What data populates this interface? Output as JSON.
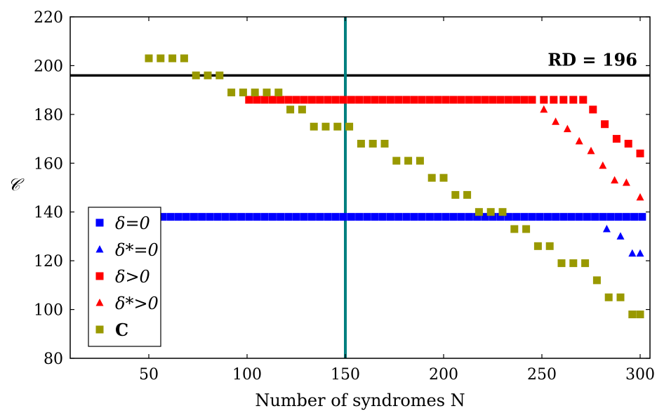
{
  "chart_data": {
    "type": "scatter",
    "title": "",
    "xlabel": "Number of syndromes N",
    "ylabel": "𝒞",
    "xlim": [
      10,
      305
    ],
    "ylim": [
      80,
      220
    ],
    "xticks": [
      50,
      100,
      150,
      200,
      250,
      300
    ],
    "yticks": [
      80,
      100,
      120,
      140,
      160,
      180,
      200,
      220
    ],
    "grid": false,
    "legend_position": "bottom-left",
    "reference_line": {
      "label": "RD =  196",
      "y": 196,
      "color": "#000000"
    },
    "vertical_line": {
      "x": 150,
      "color": "#008080"
    },
    "series": [
      {
        "name": "δ=0",
        "marker": "square",
        "color": "#0000ff",
        "x": [
          53,
          57,
          61,
          65,
          69,
          73,
          77,
          81,
          85,
          89,
          93,
          97,
          101,
          105,
          109,
          113,
          117,
          121,
          125,
          129,
          133,
          137,
          141,
          145,
          149,
          153,
          157,
          161,
          165,
          169,
          173,
          177,
          181,
          185,
          189,
          193,
          197,
          201,
          205,
          209,
          213,
          217,
          221,
          225,
          229,
          233,
          237,
          241,
          245,
          249,
          253,
          257,
          261,
          265,
          269,
          273,
          277,
          281,
          285,
          289,
          293,
          297,
          301
        ],
        "y": [
          138,
          138,
          138,
          138,
          138,
          138,
          138,
          138,
          138,
          138,
          138,
          138,
          138,
          138,
          138,
          138,
          138,
          138,
          138,
          138,
          138,
          138,
          138,
          138,
          138,
          138,
          138,
          138,
          138,
          138,
          138,
          138,
          138,
          138,
          138,
          138,
          138,
          138,
          138,
          138,
          138,
          138,
          138,
          138,
          138,
          138,
          138,
          138,
          138,
          138,
          138,
          138,
          138,
          138,
          138,
          138,
          138,
          138,
          138,
          138,
          138,
          138,
          138
        ]
      },
      {
        "name": "δ*=0",
        "marker": "triangle",
        "color": "#0000ff",
        "x": [
          283,
          290,
          296,
          300
        ],
        "y": [
          133,
          130,
          123,
          123
        ]
      },
      {
        "name": "δ>0",
        "marker": "square",
        "color": "#ff0000",
        "x": [
          101,
          105,
          109,
          113,
          117,
          121,
          125,
          129,
          133,
          137,
          141,
          145,
          149,
          153,
          157,
          161,
          165,
          169,
          173,
          177,
          181,
          185,
          189,
          193,
          197,
          201,
          205,
          209,
          213,
          217,
          221,
          225,
          229,
          233,
          237,
          241,
          245,
          251,
          256,
          261,
          266,
          271,
          276,
          282,
          288,
          294,
          300
        ],
        "y": [
          186,
          186,
          186,
          186,
          186,
          186,
          186,
          186,
          186,
          186,
          186,
          186,
          186,
          186,
          186,
          186,
          186,
          186,
          186,
          186,
          186,
          186,
          186,
          186,
          186,
          186,
          186,
          186,
          186,
          186,
          186,
          186,
          186,
          186,
          186,
          186,
          186,
          186,
          186,
          186,
          186,
          186,
          182,
          176,
          170,
          168,
          164
        ]
      },
      {
        "name": "δ*>0",
        "marker": "triangle",
        "color": "#ff0000",
        "x": [
          251,
          257,
          263,
          269,
          275,
          281,
          287,
          293,
          300
        ],
        "y": [
          182,
          177,
          174,
          169,
          165,
          159,
          153,
          152,
          146
        ]
      },
      {
        "name": "C",
        "marker": "square",
        "color": "#999900",
        "x": [
          50,
          56,
          62,
          68,
          74,
          80,
          86,
          92,
          98,
          104,
          110,
          116,
          122,
          128,
          134,
          140,
          146,
          152,
          158,
          164,
          170,
          176,
          182,
          188,
          194,
          200,
          206,
          212,
          218,
          224,
          230,
          236,
          242,
          248,
          254,
          260,
          266,
          272,
          278,
          284,
          290,
          296,
          300
        ],
        "y": [
          203,
          203,
          203,
          203,
          196,
          196,
          196,
          189,
          189,
          189,
          189,
          189,
          182,
          182,
          175,
          175,
          175,
          175,
          168,
          168,
          168,
          161,
          161,
          161,
          154,
          154,
          147,
          147,
          140,
          140,
          140,
          133,
          133,
          126,
          126,
          119,
          119,
          119,
          112,
          105,
          105,
          98,
          98
        ]
      }
    ]
  }
}
